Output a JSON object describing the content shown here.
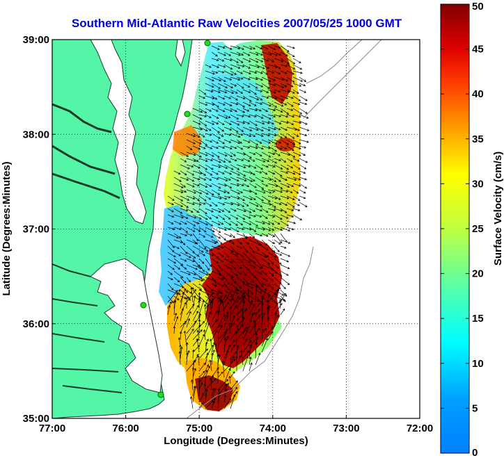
{
  "title": "Southern Mid-Atlantic Raw Velocities 2007/05/25 1000 GMT",
  "axes": {
    "xlabel": "Longitude (Degrees:Minutes)",
    "ylabel": "Latitude (Degrees:Minutes)",
    "xticks": [
      "77:00",
      "76:00",
      "75:00",
      "74:00",
      "73:00",
      "72:00"
    ],
    "yticks": [
      "39:00",
      "38:00",
      "37:00",
      "36:00",
      "35:00"
    ],
    "grid": "dotted"
  },
  "colorbar": {
    "label": "Surface Velocity (cm/s)",
    "ticks": [
      "0",
      "5",
      "10",
      "15",
      "20",
      "25",
      "30",
      "35",
      "40",
      "45",
      "50"
    ],
    "range": [
      0,
      50
    ],
    "colormap": "jet"
  },
  "colors": {
    "land": "#55f5a8",
    "title": "#0000e0",
    "station": "#22dd22"
  },
  "map": {
    "region": "Southern Mid-Atlantic Bight",
    "lon_range": [
      -77,
      -72
    ],
    "lat_range": [
      35,
      39
    ]
  }
}
